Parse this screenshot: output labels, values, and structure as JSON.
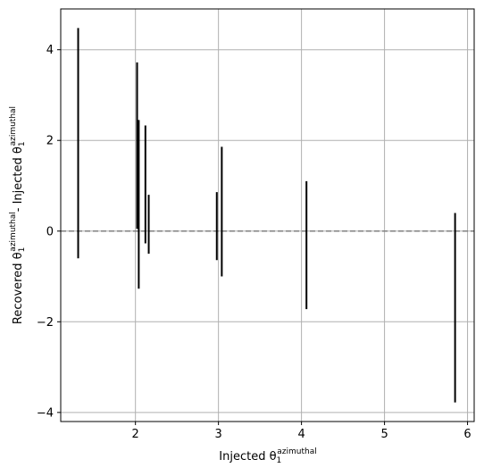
{
  "chart_data": {
    "type": "errorbar",
    "title": "",
    "xlabel": {
      "main": "Injected θ",
      "sub": "1",
      "sup": "azimuthal"
    },
    "ylabel": {
      "part1_main": "Recovered θ",
      "part1_sub": "1",
      "part1_sup": "azimuthal",
      "separator": "- ",
      "part2_main": "Injected θ",
      "part2_sub": "1",
      "part2_sup": "azimuthal"
    },
    "xlim": [
      1.1,
      6.08
    ],
    "ylim": [
      -4.2,
      4.9
    ],
    "xticks": [
      2,
      3,
      4,
      5,
      6
    ],
    "xtick_labels": [
      "2",
      "3",
      "4",
      "5",
      "6"
    ],
    "yticks": [
      -4,
      -2,
      0,
      2,
      4
    ],
    "ytick_labels": [
      "−4",
      "−2",
      "0",
      "2",
      "4"
    ],
    "grid": true,
    "reference_line": {
      "y": 0,
      "style": "dashed",
      "color": "#808080"
    },
    "errorbars": [
      {
        "x": 1.31,
        "low": -0.6,
        "high": 4.48
      },
      {
        "x": 2.02,
        "low": 0.05,
        "high": 3.72
      },
      {
        "x": 2.04,
        "low": -1.27,
        "high": 2.45
      },
      {
        "x": 2.12,
        "low": -0.27,
        "high": 2.33
      },
      {
        "x": 2.16,
        "low": -0.5,
        "high": 0.8
      },
      {
        "x": 2.98,
        "low": -0.64,
        "high": 0.86
      },
      {
        "x": 3.04,
        "low": -1.0,
        "high": 1.86
      },
      {
        "x": 4.06,
        "low": -1.72,
        "high": 1.1
      },
      {
        "x": 5.85,
        "low": -3.78,
        "high": 0.4
      }
    ],
    "colors": {
      "bars": "#000000",
      "grid": "#b0b0b0",
      "axes": "#000000"
    }
  }
}
